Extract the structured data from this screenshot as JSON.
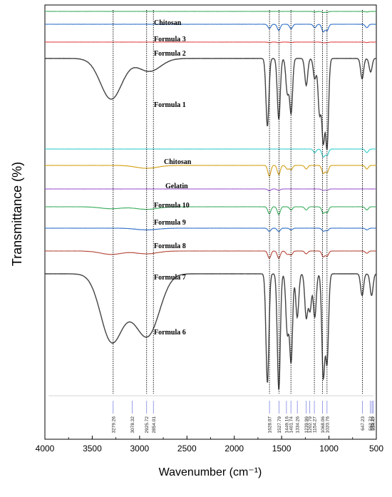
{
  "chart_data": {
    "type": "line",
    "title": "",
    "xlabel": "Wavenumber (cm⁻¹)",
    "ylabel": "Transmittance (%)",
    "xlim": [
      4000,
      500
    ],
    "x_reversed": true,
    "x_ticks": [
      4000,
      3500,
      3000,
      2500,
      2000,
      1500,
      1000,
      500
    ],
    "grid": false,
    "legend": "none",
    "series": [
      {
        "name": "",
        "color": "#3cae5e",
        "baseline": 0.5,
        "bands": [
          [
            1150,
            0.8
          ],
          [
            1060,
            1.5
          ],
          [
            1020,
            1.2
          ],
          [
            600,
            0.8
          ]
        ]
      },
      {
        "name": "Chitosan",
        "color": "#2e6fc8",
        "baseline": 0.5,
        "bands": [
          [
            1630,
            1.5
          ],
          [
            1530,
            2.2
          ],
          [
            1400,
            1.6
          ],
          [
            1150,
            1.2
          ],
          [
            1060,
            2.6
          ],
          [
            1020,
            2.2
          ],
          [
            600,
            1.2
          ]
        ]
      },
      {
        "name": "Formula 3",
        "color": "#e04545",
        "baseline": 0.5,
        "bands": [
          [
            1630,
            0.8
          ],
          [
            1530,
            1.0
          ],
          [
            1400,
            0.6
          ],
          [
            1060,
            1.0
          ],
          [
            1020,
            0.9
          ],
          [
            600,
            0.6
          ]
        ]
      },
      {
        "name": "Formula 2",
        "color": "#444444",
        "baseline": 0.5,
        "bands": [
          [
            3300,
            6.0
          ],
          [
            2925,
            1.2
          ],
          [
            2854,
            0.8
          ],
          [
            1650,
            10.0
          ],
          [
            1530,
            9.0
          ],
          [
            1440,
            5.0
          ],
          [
            1400,
            8.0
          ],
          [
            1240,
            4.0
          ],
          [
            1150,
            3.0
          ],
          [
            1100,
            8.0
          ],
          [
            1060,
            12.0
          ],
          [
            1020,
            13.0
          ],
          [
            650,
            3.0
          ],
          [
            560,
            2.0
          ]
        ]
      },
      {
        "name": "Formula 1",
        "color": "#33cccc",
        "baseline": 0.5,
        "bands": [
          [
            1150,
            1.0
          ],
          [
            1060,
            2.2
          ],
          [
            1020,
            1.8
          ],
          [
            600,
            1.0
          ]
        ]
      },
      {
        "name": "Chitosan",
        "color": "#d4a017",
        "baseline": 0.5,
        "bands": [
          [
            2925,
            0.8
          ],
          [
            1630,
            3.0
          ],
          [
            1530,
            2.6
          ],
          [
            1440,
            1.0
          ],
          [
            1400,
            1.2
          ],
          [
            1240,
            1.0
          ],
          [
            1060,
            2.2
          ],
          [
            1020,
            2.0
          ],
          [
            600,
            1.0
          ]
        ]
      },
      {
        "name": "Gelatin",
        "color": "#9b59d0",
        "baseline": 0.5,
        "bands": [
          [
            1630,
            1.0
          ],
          [
            1530,
            0.8
          ],
          [
            1060,
            0.8
          ],
          [
            1020,
            0.7
          ]
        ]
      },
      {
        "name": "Formula 10",
        "color": "#3cae5e",
        "baseline": 0.5,
        "bands": [
          [
            3300,
            0.6
          ],
          [
            2925,
            0.8
          ],
          [
            1630,
            2.2
          ],
          [
            1530,
            2.4
          ],
          [
            1400,
            1.0
          ],
          [
            1240,
            1.0
          ],
          [
            1060,
            2.0
          ],
          [
            1020,
            1.8
          ],
          [
            600,
            1.0
          ]
        ]
      },
      {
        "name": "Formula 9",
        "color": "#2e6fc8",
        "baseline": 0.5,
        "bands": [
          [
            2925,
            0.8
          ],
          [
            1630,
            1.5
          ],
          [
            1530,
            1.6
          ],
          [
            1400,
            0.8
          ],
          [
            1060,
            1.4
          ],
          [
            1020,
            1.2
          ],
          [
            600,
            0.8
          ]
        ]
      },
      {
        "name": "Formula 8",
        "color": "#b5483a",
        "baseline": 0.5,
        "bands": [
          [
            3300,
            1.2
          ],
          [
            2925,
            1.0
          ],
          [
            1630,
            2.6
          ],
          [
            1530,
            2.6
          ],
          [
            1440,
            1.2
          ],
          [
            1400,
            1.4
          ],
          [
            1240,
            1.0
          ],
          [
            1060,
            2.0
          ],
          [
            1020,
            1.8
          ],
          [
            600,
            0.8
          ]
        ]
      },
      {
        "name": "Formula 7",
        "color": "#444444",
        "baseline": 0.5,
        "bands": [
          [
            3300,
            9.0
          ],
          [
            3078,
            3.0
          ],
          [
            2925,
            5.0
          ],
          [
            2854,
            3.0
          ],
          [
            1650,
            15.0
          ],
          [
            1530,
            16.0
          ],
          [
            1440,
            8.0
          ],
          [
            1400,
            12.0
          ],
          [
            1335,
            6.0
          ],
          [
            1240,
            6.0
          ],
          [
            1200,
            5.0
          ],
          [
            1150,
            6.0
          ],
          [
            1060,
            14.0
          ],
          [
            1020,
            12.0
          ],
          [
            650,
            3.0
          ],
          [
            550,
            3.0
          ]
        ]
      }
    ],
    "series_labels": [
      "Chitosan",
      "Formula 3",
      "Formula 2",
      "Formula 1",
      "Chitosan",
      "Gelatin",
      "Formula 10",
      "Formula 9",
      "Formula 8",
      "Formula 7",
      "Formula 6"
    ],
    "reference_lines": [
      3279.26,
      2925.72,
      2854.01,
      1628.07,
      1527.79,
      1401.74,
      1154.27,
      1068.06,
      1020.76,
      647.23
    ],
    "peak_labels": [
      "3279.26",
      "3078.32",
      "2925.72",
      "2854.01",
      "1628.07",
      "1527.79",
      "1449.16",
      "1401.74",
      "1334.26",
      "1239.96",
      "1202.79",
      "1154.27",
      "1068.06",
      "1020.76",
      "647.23",
      "562.72",
      "545.76",
      "534.47"
    ],
    "peak_positions": [
      3279.26,
      3078.32,
      2925.72,
      2854.01,
      1628.07,
      1527.79,
      1449.16,
      1401.74,
      1334.26,
      1239.96,
      1202.79,
      1154.27,
      1068.06,
      1020.76,
      647.23,
      562.72,
      545.76,
      534.47
    ]
  }
}
